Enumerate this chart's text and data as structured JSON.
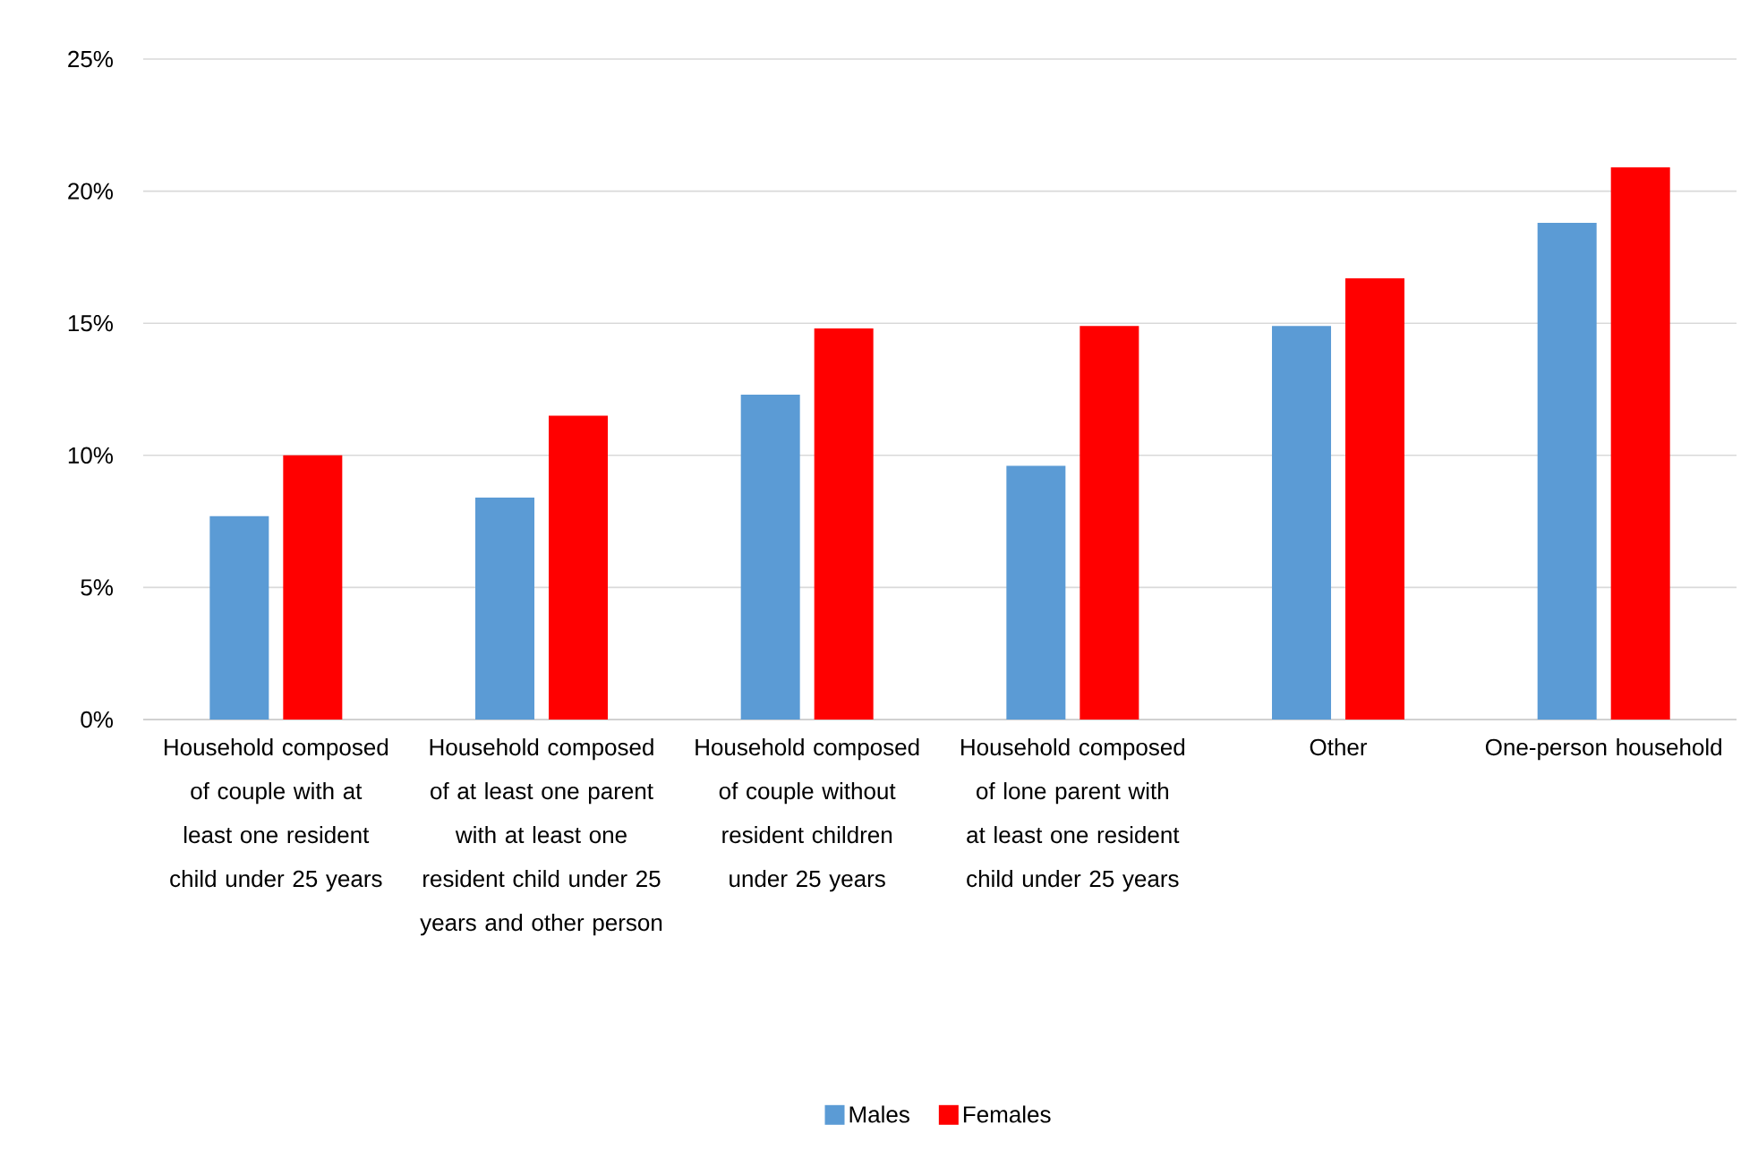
{
  "chart_data": {
    "type": "bar",
    "categories": [
      "Household composed of couple with at least one resident child under 25 years",
      "Household composed of at least one parent with at least one resident child under 25 years and other person",
      "Household composed of couple without resident children under 25 years",
      "Household composed of lone parent with at least one resident child under 25 years",
      "Other",
      "One-person household"
    ],
    "series": [
      {
        "name": "Males",
        "color": "#5b9bd5",
        "values": [
          7.7,
          8.4,
          12.3,
          9.6,
          14.9,
          18.8
        ]
      },
      {
        "name": "Females",
        "color": "#ff0000",
        "values": [
          10.0,
          11.5,
          14.8,
          14.9,
          16.7,
          20.9
        ]
      }
    ],
    "ylim": [
      0,
      25
    ],
    "yticks": [
      {
        "value": 0,
        "label": "0%"
      },
      {
        "value": 5,
        "label": "5%"
      },
      {
        "value": 10,
        "label": "10%"
      },
      {
        "value": 15,
        "label": "15%"
      },
      {
        "value": 20,
        "label": "20%"
      },
      {
        "value": 25,
        "label": "25%"
      }
    ],
    "grid": "y",
    "legend": "bottom"
  }
}
